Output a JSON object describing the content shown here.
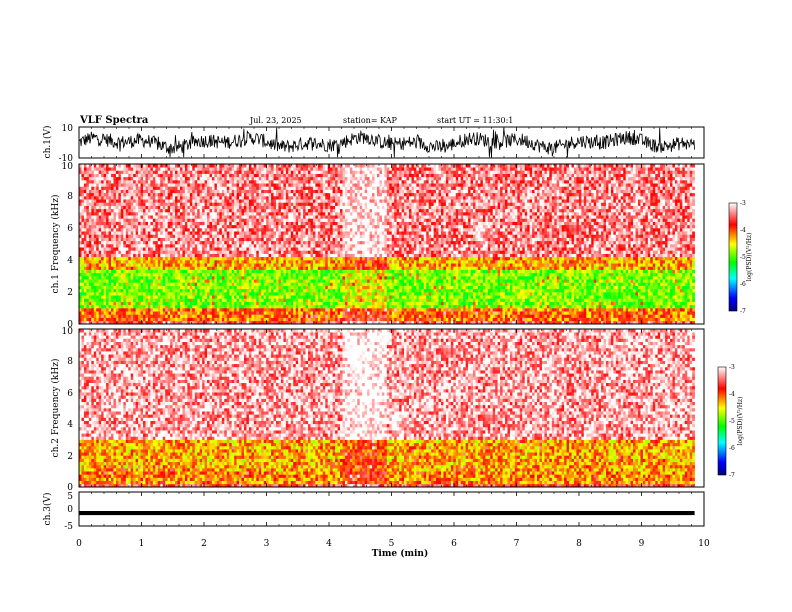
{
  "header": {
    "title": "VLF Spectra",
    "date": "Jul. 23, 2025",
    "station": "station= KAP",
    "start": "start UT = 11:30:1"
  },
  "chart_data": [
    {
      "type": "line",
      "panel": "ch1-waveform",
      "ylabel": "ch.1(V)",
      "ylim": [
        -10,
        10
      ],
      "yticks": [
        "10",
        "-10"
      ],
      "xlim": [
        0,
        10
      ],
      "line_color": "#000000",
      "description_values": {
        "typical_min": -8,
        "typical_max": 8
      }
    },
    {
      "type": "heatmap",
      "panel": "ch1-spectrogram",
      "ylabel": "ch.1 Frequency (kHz)",
      "ylim": [
        0,
        10
      ],
      "yticks": [
        "0",
        "2",
        "4",
        "6",
        "8",
        "10"
      ],
      "xlim": [
        0,
        9.85
      ],
      "bands": [
        {
          "f0": 0,
          "f1": 0.2,
          "level": -3.6
        },
        {
          "f0": 0.2,
          "f1": 1.0,
          "level": -4.1
        },
        {
          "f0": 1.0,
          "f1": 3.5,
          "level": -4.9
        },
        {
          "f0": 3.5,
          "f1": 4.2,
          "level": -4.3
        },
        {
          "f0": 4.2,
          "f1": 10,
          "level": -3.4
        }
      ],
      "colorbar": {
        "label": "log(PSD)(V²/Hz)",
        "range": [
          -7,
          -3
        ],
        "ticks": [
          "-3",
          "-4",
          "-5",
          "-6",
          "-7"
        ],
        "colors": [
          "#000080",
          "#0000ff",
          "#00ffff",
          "#00ff00",
          "#ffff00",
          "#ff0000",
          "#ffffff"
        ]
      }
    },
    {
      "type": "heatmap",
      "panel": "ch2-spectrogram",
      "ylabel": "ch.2 Frequency (kHz)",
      "ylim": [
        0,
        10
      ],
      "yticks": [
        "0",
        "2",
        "4",
        "6",
        "8",
        "10"
      ],
      "xlim": [
        0,
        9.85
      ],
      "bands": [
        {
          "f0": 0,
          "f1": 0.2,
          "level": -3.7
        },
        {
          "f0": 0.2,
          "f1": 1.0,
          "level": -4.2
        },
        {
          "f0": 1.0,
          "f1": 3.0,
          "level": -4.3
        },
        {
          "f0": 3.0,
          "f1": 10,
          "level": -3.3
        }
      ],
      "colorbar": {
        "label": "log(PSD)(V²/Hz)",
        "range": [
          -7,
          -3
        ],
        "ticks": [
          "-3",
          "-4",
          "-5",
          "-6",
          "-7"
        ],
        "colors": [
          "#000080",
          "#0000ff",
          "#00ffff",
          "#00ff00",
          "#ffff00",
          "#ff0000",
          "#ffffff"
        ]
      }
    },
    {
      "type": "line",
      "panel": "ch3-waveform",
      "ylabel": "ch.3(V)",
      "ylim": [
        -5,
        5
      ],
      "yticks": [
        "5",
        "0",
        "-5"
      ],
      "xlim": [
        0,
        10
      ],
      "description_values": {
        "band_min": -1.8,
        "band_max": -0.6
      }
    }
  ],
  "xaxis": {
    "label": "Time (min)",
    "ticks": [
      "0",
      "1",
      "2",
      "3",
      "4",
      "5",
      "6",
      "7",
      "8",
      "9",
      "10"
    ]
  }
}
